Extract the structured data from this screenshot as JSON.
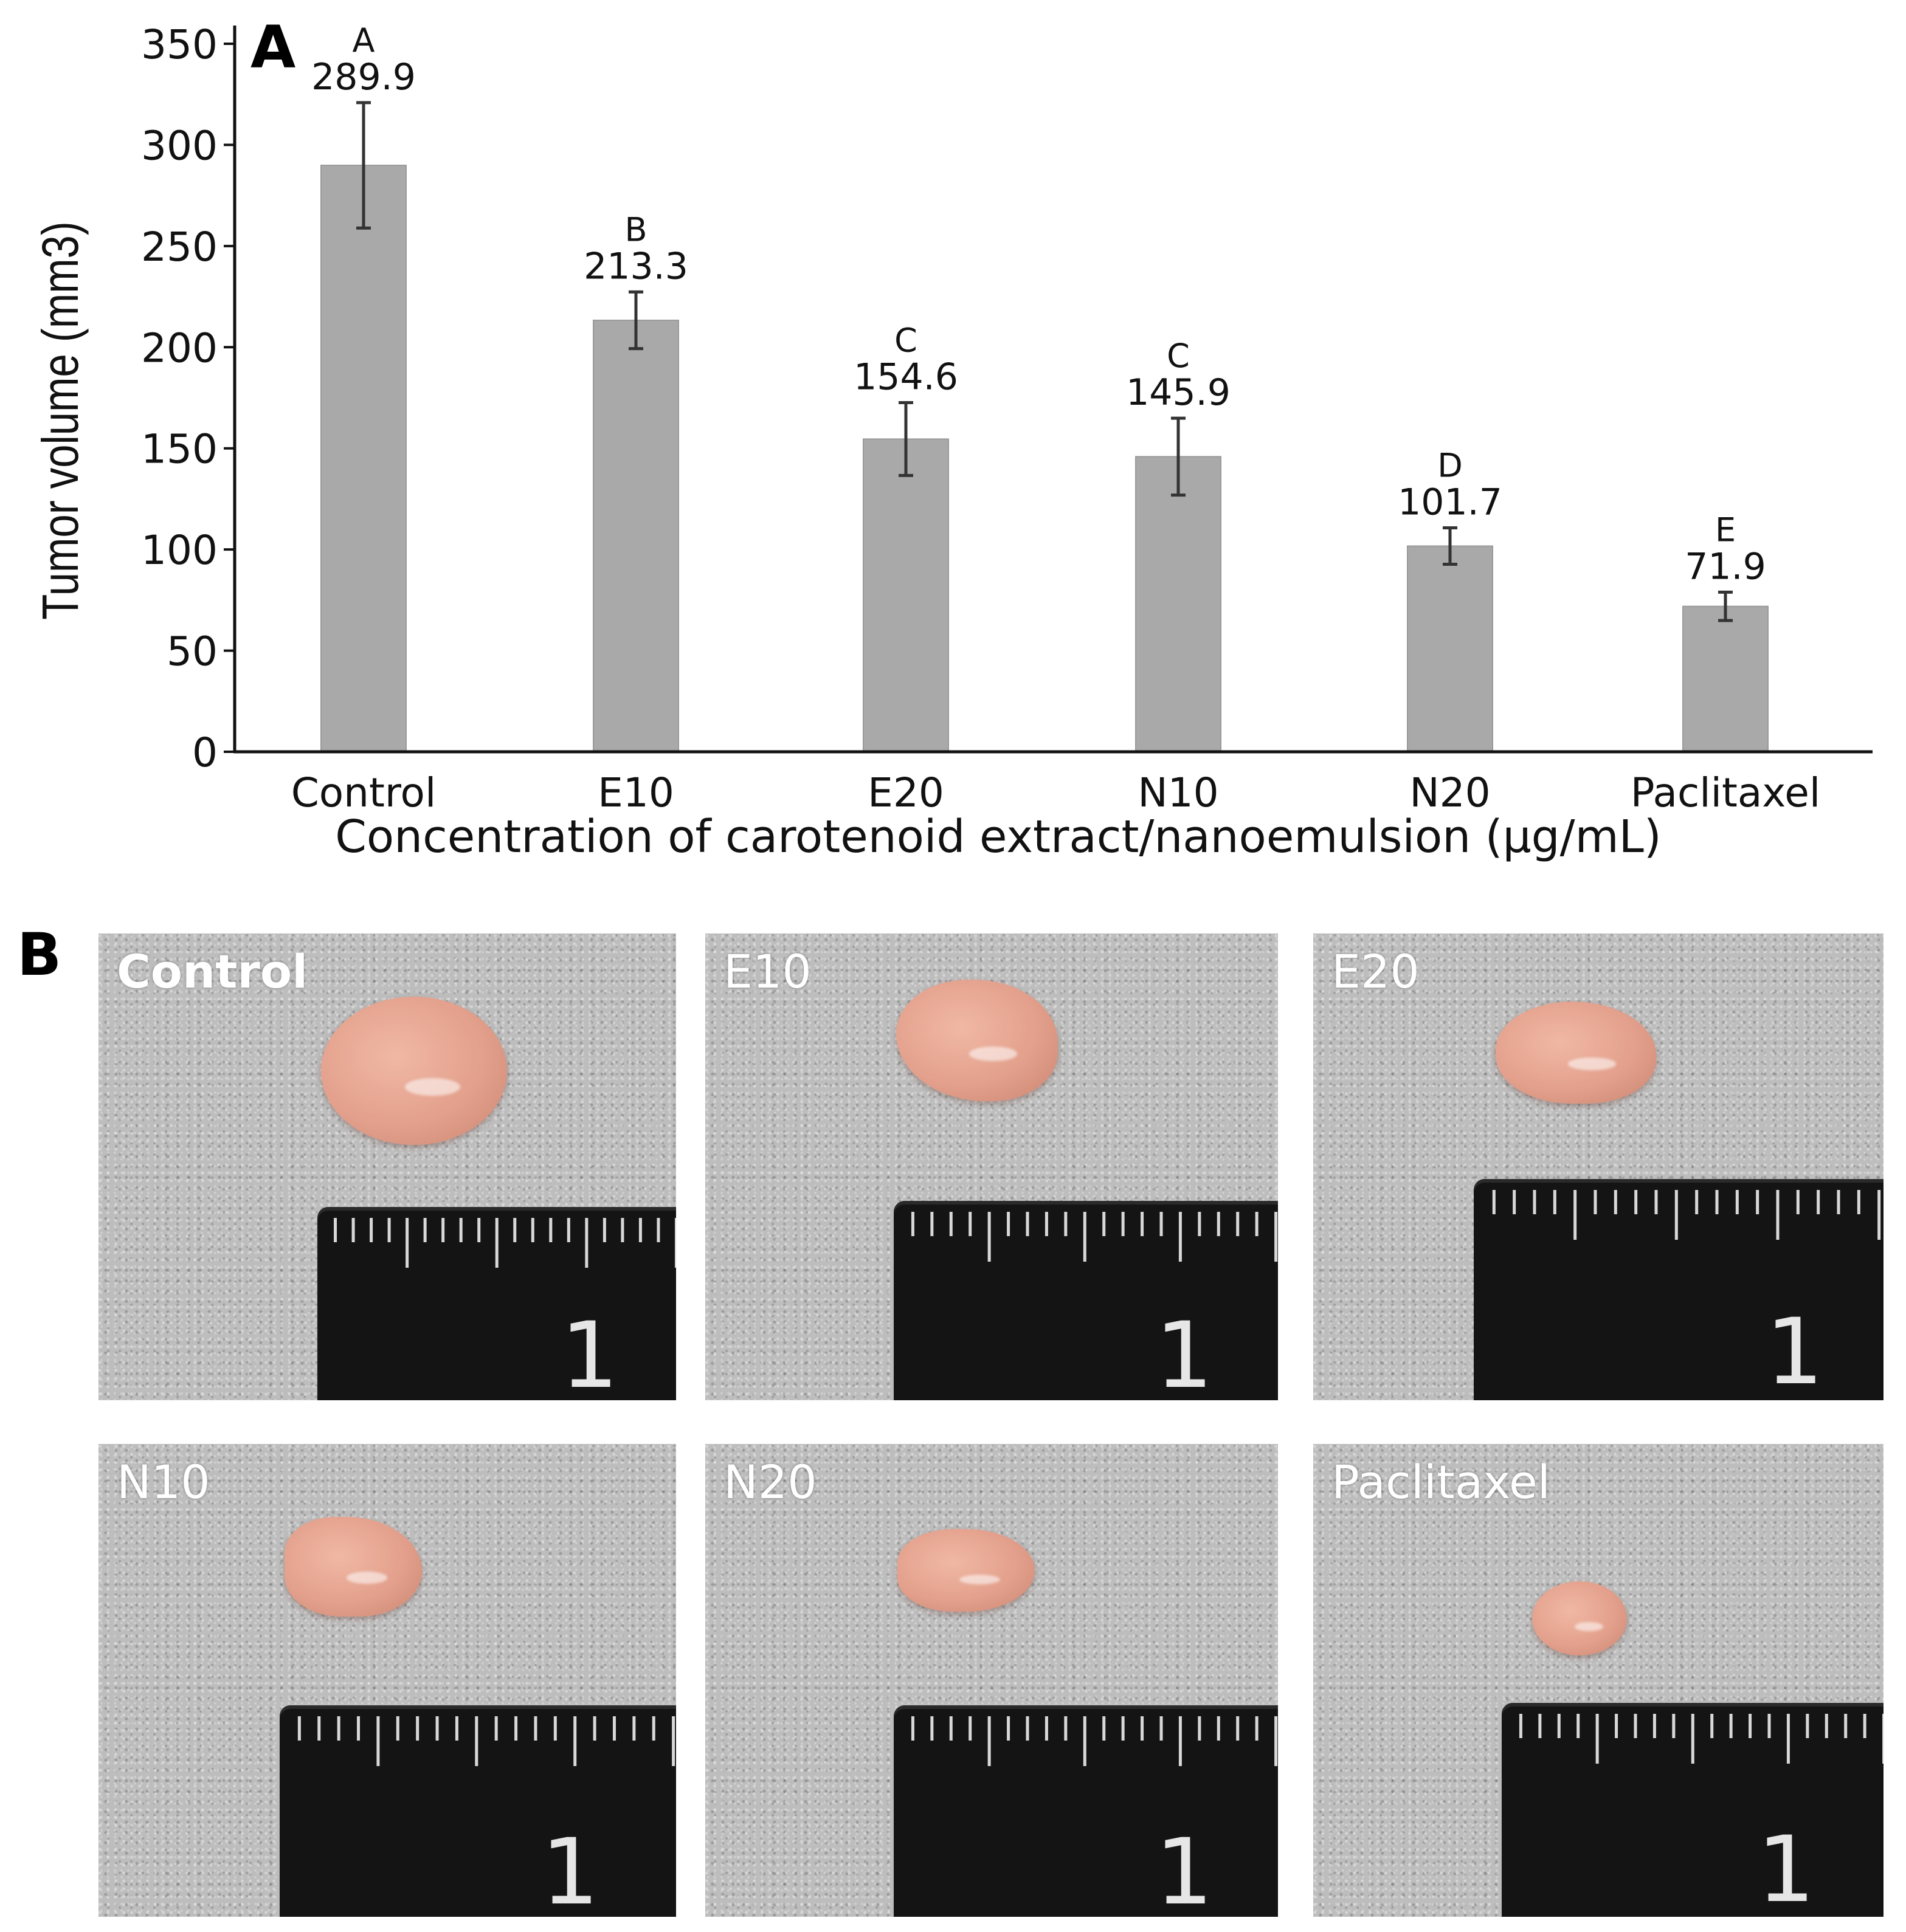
{
  "panels": {
    "a_letter": "A",
    "b_letter": "B"
  },
  "chart_data": {
    "type": "bar",
    "categories": [
      "Control",
      "E10",
      "E20",
      "N10",
      "N20",
      "Paclitaxel"
    ],
    "values": [
      289.9,
      213.3,
      154.6,
      145.9,
      101.7,
      71.9
    ],
    "errors": [
      31,
      14,
      18,
      19,
      9,
      7
    ],
    "value_labels": [
      "289.9",
      "213.3",
      "154.6",
      "145.9",
      "101.7",
      "71.9"
    ],
    "significance_letters": [
      "A",
      "B",
      "C",
      "C",
      "D",
      "E"
    ],
    "title": "",
    "xlabel": "Concentration of carotenoid extract/nanoemulsion (µg/mL)",
    "ylabel": "Tumor volume (mm3)",
    "ylim": [
      0,
      350
    ],
    "yticks": [
      0,
      50,
      100,
      150,
      200,
      250,
      300,
      350
    ],
    "ytick_labels": [
      "0",
      "50",
      "100",
      "150",
      "200",
      "250",
      "300",
      "350"
    ],
    "grid": false,
    "bar_color": "#a9a9a9"
  },
  "photos": [
    {
      "label": "Control",
      "ruler_number": "1"
    },
    {
      "label": "E10",
      "ruler_number": "1"
    },
    {
      "label": "E20",
      "ruler_number": "1"
    },
    {
      "label": "N10",
      "ruler_number": "1"
    },
    {
      "label": "N20",
      "ruler_number": "1"
    },
    {
      "label": "Paclitaxel",
      "ruler_number": "1"
    }
  ]
}
